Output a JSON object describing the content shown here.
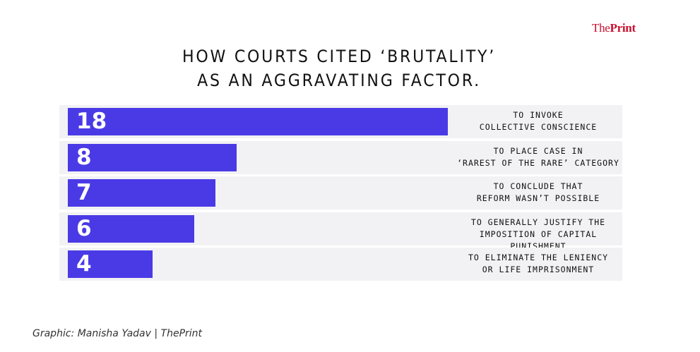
{
  "brand": {
    "logo_the": "The",
    "logo_print": "Print"
  },
  "title_lines": [
    "HOW COURTS CITED ‘BRUTALITY’",
    "AS AN AGGRAVATING FACTOR."
  ],
  "credit": "Graphic: Manisha Yadav | ThePrint",
  "colors": {
    "bar": "#4a3ae6",
    "row_background": "#f2f2f4",
    "brand_red": "#c8102e"
  },
  "chart_data": {
    "type": "bar",
    "orientation": "horizontal",
    "title": "HOW COURTS CITED ‘BRUTALITY’ AS AN AGGRAVATING FACTOR.",
    "xlabel": "",
    "ylabel": "",
    "xlim": [
      0,
      18
    ],
    "grid": false,
    "categories": [
      "TO INVOKE\nCOLLECTIVE CONSCIENCE",
      "TO PLACE CASE IN\n‘RAREST OF THE RARE’ CATEGORY",
      "TO CONCLUDE THAT\nREFORM WASN’T POSSIBLE",
      "TO GENERALLY JUSTIFY THE\nIMPOSITION OF CAPITAL PUNISHMENT",
      "TO ELIMINATE THE LENIENCY\nOR LIFE IMPRISONMENT"
    ],
    "values": [
      18,
      8,
      7,
      6,
      4
    ]
  }
}
